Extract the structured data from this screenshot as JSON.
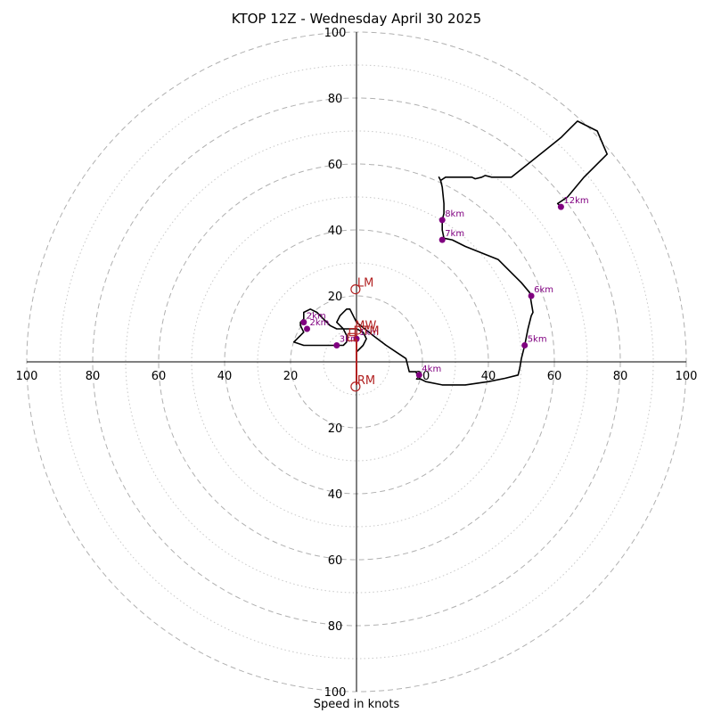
{
  "chart_data": {
    "type": "line",
    "title": "KTOP 12Z - Wednesday April 30 2025",
    "xlabel": "Speed in knots",
    "ylabel": "",
    "ring_range": [
      0,
      100
    ],
    "ring_major_step": 20,
    "ring_labels": [
      "20",
      "40",
      "60",
      "80",
      "100"
    ],
    "grid": true,
    "series": [
      {
        "type": "line",
        "color": "#000000",
        "x": [
          0,
          2,
          3,
          2,
          0,
          -3,
          -6,
          -8,
          -9,
          -10,
          -12,
          -14,
          -16,
          -16,
          -17,
          -17,
          -16,
          -17,
          -19,
          -16,
          -12,
          -10,
          -7,
          -4,
          -3,
          -3,
          -3,
          -4,
          -6,
          -5,
          -3,
          -2,
          -1,
          0,
          5,
          9,
          12,
          15,
          16,
          18,
          19,
          21,
          26,
          33,
          40,
          45,
          49,
          49.5,
          50,
          51,
          52,
          53,
          53.5,
          53,
          52.5,
          50,
          46,
          43,
          38,
          33,
          29,
          26.5,
          26,
          26,
          26.5,
          26.5,
          26,
          25.5,
          25,
          25.5,
          27,
          31,
          35,
          36,
          38,
          39,
          41,
          47,
          52,
          57,
          62,
          67,
          73,
          76,
          69,
          64,
          61,
          62
        ],
        "y": [
          3,
          5,
          7,
          9,
          10,
          10,
          10,
          11,
          12,
          13,
          15,
          16,
          15,
          13,
          12,
          11,
          9,
          8,
          6,
          5,
          5,
          5,
          5,
          5,
          6,
          7,
          8,
          10,
          12,
          14,
          16,
          16,
          14,
          12,
          8,
          5,
          3,
          1,
          -3,
          -3,
          -5,
          -6,
          -7,
          -7,
          -6,
          -5,
          -4,
          -2,
          1,
          5,
          10,
          14,
          15,
          18,
          21,
          24,
          28,
          31,
          33,
          35,
          37,
          37.5,
          40,
          43,
          45,
          48,
          53,
          55,
          56,
          55,
          56,
          56,
          56,
          55.5,
          56,
          56.5,
          56,
          56,
          60,
          64,
          68,
          73,
          70,
          63,
          56,
          50,
          48,
          47
        ]
      }
    ],
    "height_markers": [
      {
        "label": "1km",
        "u": 0,
        "v": 7
      },
      {
        "label": "2km",
        "u": -15,
        "v": 10
      },
      {
        "label": "2km",
        "u": -16,
        "v": 12
      },
      {
        "label": "3km",
        "u": -6,
        "v": 5
      },
      {
        "label": "4km",
        "u": 19,
        "v": -4
      },
      {
        "label": "5km",
        "u": 51,
        "v": 5
      },
      {
        "label": "6km",
        "u": 53,
        "v": 20
      },
      {
        "label": "7km",
        "u": 26,
        "v": 37
      },
      {
        "label": "8km",
        "u": 26,
        "v": 43
      },
      {
        "label": "12km",
        "u": 62,
        "v": 47
      }
    ],
    "motion_markers": [
      {
        "label": "LM",
        "u": -0.3,
        "v": 22,
        "shape": "circle"
      },
      {
        "label": "RM",
        "u": -0.3,
        "v": -7.5,
        "shape": "circle"
      },
      {
        "label": "MW",
        "u": -1,
        "v": 9,
        "shape": "square"
      },
      {
        "label": "DTM",
        "u": -1.5,
        "v": 7.5,
        "shape": "square"
      }
    ],
    "marker_color": "#800080",
    "motion_color": "#b22222",
    "shear_vector": {
      "u": 0,
      "v": 7,
      "to_u": 0,
      "to_v": -7,
      "color": "#b22222"
    }
  }
}
